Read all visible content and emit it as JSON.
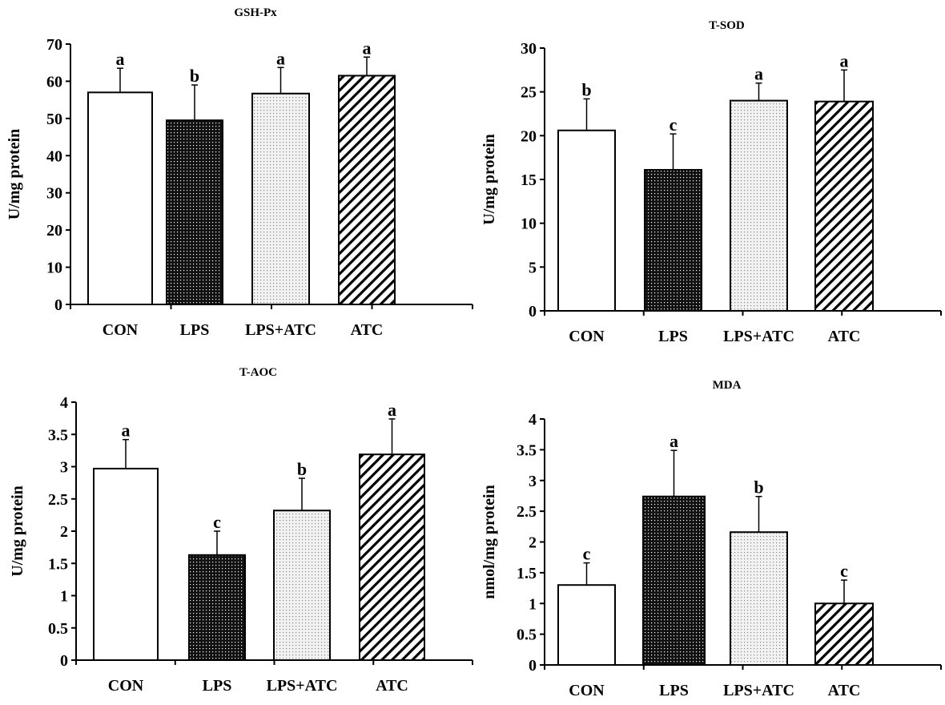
{
  "chart_data": [
    {
      "type": "bar",
      "title": "GSH-Px",
      "ylabel": "U/mg protein",
      "xlabel": "",
      "categories": [
        "CON",
        "LPS",
        "LPS+ATC",
        "ATC"
      ],
      "values": [
        57,
        49.5,
        56.7,
        61.5
      ],
      "errors": [
        6.5,
        9.5,
        7,
        5
      ],
      "significance": [
        "a",
        "b",
        "a",
        "a"
      ],
      "ylim": [
        0,
        70
      ],
      "yticks": [
        "0",
        "10",
        "20",
        "30",
        "40",
        "50",
        "60",
        "70"
      ],
      "grid": false
    },
    {
      "type": "bar",
      "title": "T-SOD",
      "ylabel": "U/mg protein",
      "xlabel": "",
      "categories": [
        "CON",
        "LPS",
        "LPS+ATC",
        "ATC"
      ],
      "values": [
        20.6,
        16.1,
        24.0,
        23.9
      ],
      "errors": [
        3.6,
        4.1,
        2.0,
        3.6
      ],
      "significance": [
        "b",
        "c",
        "a",
        "a"
      ],
      "ylim": [
        0,
        30
      ],
      "yticks": [
        "0",
        "5",
        "10",
        "15",
        "20",
        "25",
        "30"
      ],
      "grid": false
    },
    {
      "type": "bar",
      "title": "T-AOC",
      "ylabel": "U/mg protein",
      "xlabel": "",
      "categories": [
        "CON",
        "LPS",
        "LPS+ATC",
        "ATC"
      ],
      "values": [
        2.97,
        1.63,
        2.32,
        3.19
      ],
      "errors": [
        0.45,
        0.37,
        0.5,
        0.55
      ],
      "significance": [
        "a",
        "c",
        "b",
        "a"
      ],
      "ylim": [
        0,
        4
      ],
      "yticks": [
        "0",
        "0.5",
        "1",
        "1.5",
        "2",
        "2.5",
        "3",
        "3.5",
        "4"
      ],
      "grid": false
    },
    {
      "type": "bar",
      "title": "MDA",
      "ylabel": "nmol/mg protein",
      "xlabel": "",
      "categories": [
        "CON",
        "LPS",
        "LPS+ATC",
        "ATC"
      ],
      "values": [
        1.3,
        2.74,
        2.16,
        1.0
      ],
      "errors": [
        0.36,
        0.75,
        0.58,
        0.38
      ],
      "significance": [
        "c",
        "a",
        "b",
        "c"
      ],
      "ylim": [
        0,
        4
      ],
      "yticks": [
        "0",
        "0.5",
        "1",
        "1.5",
        "2",
        "2.5",
        "3",
        "3.5",
        "4"
      ],
      "grid": false
    }
  ]
}
